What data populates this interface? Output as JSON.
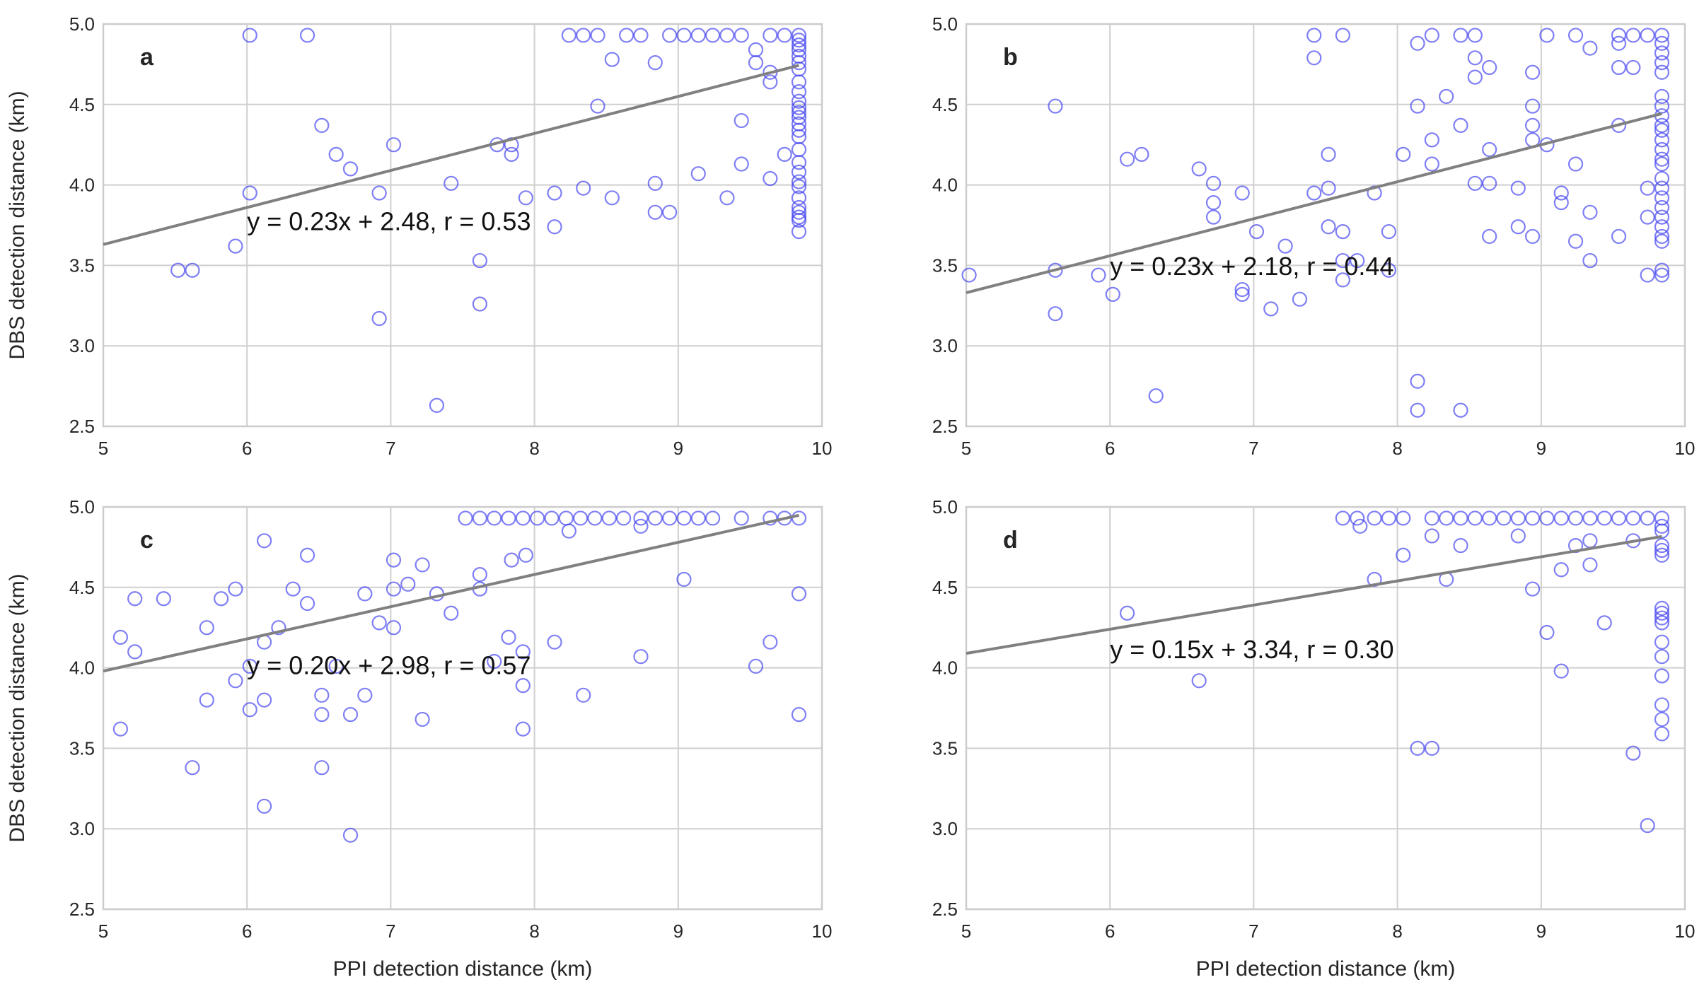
{
  "chart_data": [
    {
      "type": "scatter",
      "panel": "a",
      "equation": "y = 0.23x + 2.48, r = 0.53",
      "fit": {
        "slope": 0.23,
        "intercept": 2.48,
        "r": 0.53
      },
      "xlabel": "",
      "ylabel": "DBS detection distance (km)",
      "xlim": [
        5,
        10
      ],
      "ylim": [
        2.5,
        5.0
      ],
      "xticks": [
        "5",
        "6",
        "7",
        "8",
        "9",
        "10"
      ],
      "yticks": [
        "2.5",
        "3.0",
        "3.5",
        "4.0",
        "4.5",
        "5.0"
      ],
      "points": [
        [
          6.02,
          4.93
        ],
        [
          6.42,
          4.93
        ],
        [
          8.24,
          4.93
        ],
        [
          8.34,
          4.93
        ],
        [
          8.44,
          4.93
        ],
        [
          8.64,
          4.93
        ],
        [
          8.74,
          4.93
        ],
        [
          8.94,
          4.93
        ],
        [
          9.04,
          4.93
        ],
        [
          9.14,
          4.93
        ],
        [
          9.24,
          4.93
        ],
        [
          9.34,
          4.93
        ],
        [
          9.44,
          4.93
        ],
        [
          9.64,
          4.93
        ],
        [
          9.74,
          4.93
        ],
        [
          9.84,
          4.93
        ],
        [
          9.84,
          4.9
        ],
        [
          9.84,
          4.87
        ],
        [
          9.84,
          4.84
        ],
        [
          9.84,
          4.8
        ],
        [
          9.84,
          4.76
        ],
        [
          9.84,
          4.72
        ],
        [
          9.84,
          4.64
        ],
        [
          9.84,
          4.58
        ],
        [
          9.84,
          4.52
        ],
        [
          9.84,
          4.48
        ],
        [
          9.84,
          4.45
        ],
        [
          9.84,
          4.42
        ],
        [
          9.84,
          4.38
        ],
        [
          9.84,
          4.34
        ],
        [
          9.84,
          4.3
        ],
        [
          9.84,
          4.22
        ],
        [
          9.84,
          4.14
        ],
        [
          9.84,
          4.08
        ],
        [
          9.84,
          4.02
        ],
        [
          9.84,
          3.99
        ],
        [
          9.84,
          3.92
        ],
        [
          9.84,
          3.86
        ],
        [
          9.84,
          3.83
        ],
        [
          9.84,
          3.8
        ],
        [
          9.84,
          3.78
        ],
        [
          9.84,
          3.71
        ],
        [
          8.54,
          4.78
        ],
        [
          8.84,
          4.76
        ],
        [
          9.54,
          4.84
        ],
        [
          9.54,
          4.76
        ],
        [
          9.64,
          4.7
        ],
        [
          9.64,
          4.64
        ],
        [
          8.44,
          4.49
        ],
        [
          9.44,
          4.4
        ],
        [
          9.44,
          4.13
        ],
        [
          9.74,
          4.19
        ],
        [
          9.64,
          4.04
        ],
        [
          9.14,
          4.07
        ],
        [
          9.34,
          3.92
        ],
        [
          8.84,
          4.01
        ],
        [
          8.84,
          3.83
        ],
        [
          8.94,
          3.83
        ],
        [
          8.54,
          3.92
        ],
        [
          8.34,
          3.98
        ],
        [
          8.14,
          3.95
        ],
        [
          8.14,
          3.74
        ],
        [
          7.94,
          3.92
        ],
        [
          7.84,
          4.25
        ],
        [
          7.84,
          4.19
        ],
        [
          7.74,
          4.25
        ],
        [
          6.52,
          4.37
        ],
        [
          6.62,
          4.19
        ],
        [
          6.72,
          4.1
        ],
        [
          7.02,
          4.25
        ],
        [
          7.42,
          4.01
        ],
        [
          6.92,
          3.95
        ],
        [
          6.02,
          3.95
        ],
        [
          5.92,
          3.62
        ],
        [
          5.52,
          3.47
        ],
        [
          5.62,
          3.47
        ],
        [
          7.62,
          3.53
        ],
        [
          7.62,
          3.26
        ],
        [
          6.92,
          3.17
        ],
        [
          7.32,
          2.63
        ]
      ]
    },
    {
      "type": "scatter",
      "panel": "b",
      "equation": "y = 0.23x + 2.18, r = 0.44",
      "fit": {
        "slope": 0.23,
        "intercept": 2.18,
        "r": 0.44
      },
      "xlabel": "",
      "ylabel": "",
      "xlim": [
        5,
        10
      ],
      "ylim": [
        2.5,
        5.0
      ],
      "xticks": [
        "5",
        "6",
        "7",
        "8",
        "9",
        "10"
      ],
      "yticks": [
        "2.5",
        "3.0",
        "3.5",
        "4.0",
        "4.5",
        "5.0"
      ],
      "points": [
        [
          7.42,
          4.93
        ],
        [
          7.62,
          4.93
        ],
        [
          8.24,
          4.93
        ],
        [
          8.44,
          4.93
        ],
        [
          8.54,
          4.93
        ],
        [
          9.04,
          4.93
        ],
        [
          9.24,
          4.93
        ],
        [
          9.54,
          4.93
        ],
        [
          9.64,
          4.93
        ],
        [
          9.74,
          4.93
        ],
        [
          9.84,
          4.93
        ],
        [
          7.42,
          4.79
        ],
        [
          8.14,
          4.88
        ],
        [
          8.54,
          4.79
        ],
        [
          8.54,
          4.67
        ],
        [
          8.64,
          4.73
        ],
        [
          8.94,
          4.7
        ],
        [
          9.34,
          4.85
        ],
        [
          9.54,
          4.88
        ],
        [
          9.54,
          4.73
        ],
        [
          9.64,
          4.73
        ],
        [
          9.84,
          4.88
        ],
        [
          9.84,
          4.82
        ],
        [
          9.84,
          4.76
        ],
        [
          9.84,
          4.7
        ],
        [
          9.84,
          4.55
        ],
        [
          9.84,
          4.49
        ],
        [
          9.84,
          4.43
        ],
        [
          9.84,
          4.37
        ],
        [
          9.84,
          4.34
        ],
        [
          9.84,
          4.28
        ],
        [
          9.84,
          4.22
        ],
        [
          9.84,
          4.16
        ],
        [
          9.84,
          4.13
        ],
        [
          9.84,
          4.04
        ],
        [
          9.84,
          3.98
        ],
        [
          9.84,
          3.92
        ],
        [
          9.84,
          3.86
        ],
        [
          9.84,
          3.8
        ],
        [
          9.84,
          3.74
        ],
        [
          9.84,
          3.68
        ],
        [
          9.84,
          3.65
        ],
        [
          9.84,
          3.47
        ],
        [
          9.84,
          3.44
        ],
        [
          9.54,
          4.37
        ],
        [
          9.74,
          3.98
        ],
        [
          9.74,
          3.8
        ],
        [
          9.74,
          3.44
        ],
        [
          9.54,
          3.68
        ],
        [
          9.34,
          3.83
        ],
        [
          9.34,
          3.53
        ],
        [
          9.24,
          4.13
        ],
        [
          9.24,
          3.65
        ],
        [
          9.14,
          3.95
        ],
        [
          9.14,
          3.89
        ],
        [
          9.04,
          4.25
        ],
        [
          8.94,
          4.49
        ],
        [
          8.94,
          4.37
        ],
        [
          8.94,
          4.28
        ],
        [
          8.94,
          3.68
        ],
        [
          8.84,
          3.98
        ],
        [
          8.84,
          3.74
        ],
        [
          8.64,
          4.22
        ],
        [
          8.64,
          4.01
        ],
        [
          8.64,
          3.68
        ],
        [
          8.54,
          4.01
        ],
        [
          8.44,
          4.37
        ],
        [
          8.34,
          4.55
        ],
        [
          8.24,
          4.28
        ],
        [
          8.24,
          4.13
        ],
        [
          8.14,
          4.49
        ],
        [
          8.04,
          4.19
        ],
        [
          7.84,
          3.95
        ],
        [
          7.94,
          3.71
        ],
        [
          7.94,
          3.47
        ],
        [
          7.52,
          4.19
        ],
        [
          7.52,
          3.98
        ],
        [
          7.52,
          3.74
        ],
        [
          7.62,
          3.71
        ],
        [
          7.62,
          3.53
        ],
        [
          7.62,
          3.41
        ],
        [
          7.72,
          3.53
        ],
        [
          7.42,
          3.95
        ],
        [
          7.22,
          3.62
        ],
        [
          7.02,
          3.71
        ],
        [
          6.72,
          4.01
        ],
        [
          6.72,
          3.89
        ],
        [
          6.72,
          3.8
        ],
        [
          6.62,
          4.1
        ],
        [
          6.92,
          3.95
        ],
        [
          6.92,
          3.35
        ],
        [
          6.92,
          3.32
        ],
        [
          7.12,
          3.23
        ],
        [
          7.32,
          3.29
        ],
        [
          6.12,
          4.16
        ],
        [
          6.22,
          4.19
        ],
        [
          5.62,
          4.49
        ],
        [
          5.62,
          3.47
        ],
        [
          5.62,
          3.2
        ],
        [
          5.92,
          3.44
        ],
        [
          6.02,
          3.32
        ],
        [
          5.02,
          3.44
        ],
        [
          6.32,
          2.69
        ],
        [
          8.14,
          2.78
        ],
        [
          8.14,
          2.6
        ],
        [
          8.44,
          2.6
        ]
      ]
    },
    {
      "type": "scatter",
      "panel": "c",
      "equation": "y = 0.20x + 2.98, r = 0.57",
      "fit": {
        "slope": 0.2,
        "intercept": 2.98,
        "r": 0.57
      },
      "xlabel": "PPI detection distance (km)",
      "ylabel": "DBS detection distance (km)",
      "xlim": [
        5,
        10
      ],
      "ylim": [
        2.5,
        5.0
      ],
      "xticks": [
        "5",
        "6",
        "7",
        "8",
        "9",
        "10"
      ],
      "yticks": [
        "2.5",
        "3.0",
        "3.5",
        "4.0",
        "4.5",
        "5.0"
      ],
      "points": [
        [
          7.52,
          4.93
        ],
        [
          7.62,
          4.93
        ],
        [
          7.72,
          4.93
        ],
        [
          7.82,
          4.93
        ],
        [
          7.92,
          4.93
        ],
        [
          8.02,
          4.93
        ],
        [
          8.12,
          4.93
        ],
        [
          8.22,
          4.93
        ],
        [
          8.32,
          4.93
        ],
        [
          8.42,
          4.93
        ],
        [
          8.52,
          4.93
        ],
        [
          8.62,
          4.93
        ],
        [
          8.74,
          4.93
        ],
        [
          8.84,
          4.93
        ],
        [
          8.94,
          4.93
        ],
        [
          9.04,
          4.93
        ],
        [
          9.14,
          4.93
        ],
        [
          9.24,
          4.93
        ],
        [
          9.44,
          4.93
        ],
        [
          9.64,
          4.93
        ],
        [
          9.74,
          4.93
        ],
        [
          9.84,
          4.93
        ],
        [
          8.24,
          4.85
        ],
        [
          8.74,
          4.88
        ],
        [
          7.84,
          4.67
        ],
        [
          7.94,
          4.7
        ],
        [
          7.62,
          4.58
        ],
        [
          7.62,
          4.49
        ],
        [
          9.04,
          4.55
        ],
        [
          9.84,
          4.46
        ],
        [
          6.12,
          4.79
        ],
        [
          6.42,
          4.7
        ],
        [
          7.02,
          4.67
        ],
        [
          7.22,
          4.64
        ],
        [
          7.12,
          4.52
        ],
        [
          7.02,
          4.49
        ],
        [
          6.82,
          4.46
        ],
        [
          7.32,
          4.46
        ],
        [
          6.32,
          4.49
        ],
        [
          6.42,
          4.4
        ],
        [
          7.42,
          4.34
        ],
        [
          6.92,
          4.28
        ],
        [
          7.02,
          4.25
        ],
        [
          6.22,
          4.25
        ],
        [
          6.12,
          4.16
        ],
        [
          5.92,
          4.49
        ],
        [
          5.82,
          4.43
        ],
        [
          5.72,
          4.25
        ],
        [
          5.42,
          4.43
        ],
        [
          5.22,
          4.43
        ],
        [
          5.22,
          4.1
        ],
        [
          5.12,
          4.19
        ],
        [
          7.82,
          4.19
        ],
        [
          7.92,
          4.1
        ],
        [
          8.14,
          4.16
        ],
        [
          7.72,
          4.04
        ],
        [
          8.74,
          4.07
        ],
        [
          9.54,
          4.01
        ],
        [
          9.64,
          4.16
        ],
        [
          7.92,
          3.89
        ],
        [
          8.34,
          3.83
        ],
        [
          7.92,
          3.62
        ],
        [
          7.22,
          3.68
        ],
        [
          6.82,
          3.83
        ],
        [
          6.72,
          3.71
        ],
        [
          6.52,
          3.83
        ],
        [
          6.52,
          3.71
        ],
        [
          6.62,
          4.01
        ],
        [
          6.02,
          4.01
        ],
        [
          5.92,
          3.92
        ],
        [
          6.02,
          3.74
        ],
        [
          5.72,
          3.8
        ],
        [
          6.12,
          3.8
        ],
        [
          5.12,
          3.62
        ],
        [
          5.62,
          3.38
        ],
        [
          6.52,
          3.38
        ],
        [
          6.12,
          3.14
        ],
        [
          6.72,
          2.96
        ],
        [
          9.84,
          3.71
        ]
      ]
    },
    {
      "type": "scatter",
      "panel": "d",
      "equation": "y = 0.15x + 3.34, r = 0.30",
      "fit": {
        "slope": 0.15,
        "intercept": 3.34,
        "r": 0.3
      },
      "xlabel": "PPI detection distance (km)",
      "ylabel": "",
      "xlim": [
        5,
        10
      ],
      "ylim": [
        2.5,
        5.0
      ],
      "xticks": [
        "5",
        "6",
        "7",
        "8",
        "9",
        "10"
      ],
      "yticks": [
        "2.5",
        "3.0",
        "3.5",
        "4.0",
        "4.5",
        "5.0"
      ],
      "points": [
        [
          7.62,
          4.93
        ],
        [
          7.72,
          4.93
        ],
        [
          7.84,
          4.93
        ],
        [
          7.94,
          4.93
        ],
        [
          8.04,
          4.93
        ],
        [
          8.24,
          4.93
        ],
        [
          8.34,
          4.93
        ],
        [
          8.44,
          4.93
        ],
        [
          8.54,
          4.93
        ],
        [
          8.64,
          4.93
        ],
        [
          8.74,
          4.93
        ],
        [
          8.84,
          4.93
        ],
        [
          8.94,
          4.93
        ],
        [
          9.04,
          4.93
        ],
        [
          9.14,
          4.93
        ],
        [
          9.24,
          4.93
        ],
        [
          9.34,
          4.93
        ],
        [
          9.44,
          4.93
        ],
        [
          9.54,
          4.93
        ],
        [
          9.64,
          4.93
        ],
        [
          9.74,
          4.93
        ],
        [
          9.84,
          4.93
        ],
        [
          7.74,
          4.88
        ],
        [
          8.24,
          4.82
        ],
        [
          8.44,
          4.76
        ],
        [
          8.84,
          4.82
        ],
        [
          9.24,
          4.76
        ],
        [
          9.34,
          4.79
        ],
        [
          9.64,
          4.79
        ],
        [
          9.14,
          4.61
        ],
        [
          9.34,
          4.64
        ],
        [
          8.04,
          4.7
        ],
        [
          7.84,
          4.55
        ],
        [
          8.34,
          4.55
        ],
        [
          8.94,
          4.49
        ],
        [
          9.44,
          4.28
        ],
        [
          9.04,
          4.22
        ],
        [
          9.14,
          3.98
        ],
        [
          9.84,
          4.88
        ],
        [
          9.84,
          4.85
        ],
        [
          9.84,
          4.76
        ],
        [
          9.84,
          4.73
        ],
        [
          9.84,
          4.7
        ],
        [
          9.84,
          4.37
        ],
        [
          9.84,
          4.34
        ],
        [
          9.84,
          4.31
        ],
        [
          9.84,
          4.28
        ],
        [
          9.84,
          4.16
        ],
        [
          9.84,
          4.07
        ],
        [
          9.84,
          3.95
        ],
        [
          9.84,
          3.77
        ],
        [
          9.84,
          3.68
        ],
        [
          9.84,
          3.59
        ],
        [
          6.12,
          4.34
        ],
        [
          6.62,
          3.92
        ],
        [
          8.14,
          3.5
        ],
        [
          8.24,
          3.5
        ],
        [
          9.64,
          3.47
        ],
        [
          9.74,
          3.02
        ]
      ]
    }
  ]
}
